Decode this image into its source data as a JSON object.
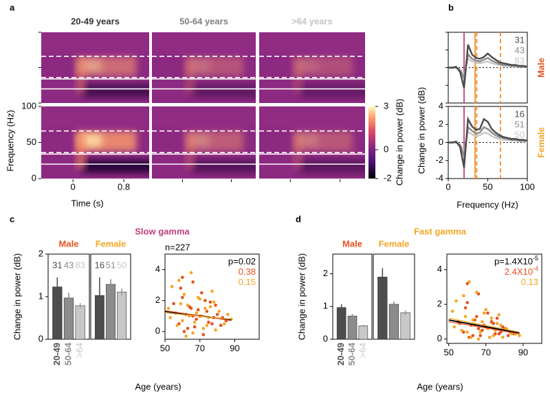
{
  "panel_labels": [
    "a",
    "b",
    "c",
    "d"
  ],
  "chart_data": [
    {
      "type": "heatmap",
      "columns": [
        "20-49 years",
        "50-64 years",
        ">64 years"
      ],
      "column_colors": [
        "#333333",
        "#808080",
        "#c4c4c4"
      ],
      "xlabel": "Time (s)",
      "ylabel": "Frequency (Hz)",
      "xlim": [
        -0.5,
        1.2
      ],
      "xticks": [
        0,
        0.8
      ],
      "ylim": [
        0,
        100
      ],
      "yticks": [
        0,
        50,
        100
      ],
      "bands": {
        "slow": [
          20,
          34
        ],
        "fast": [
          36,
          66
        ]
      },
      "colorbar": {
        "clim": [
          -2,
          3
        ],
        "cticks": [
          3,
          0,
          -2
        ],
        "label": "Change in power (dB)"
      }
    },
    {
      "type": "line",
      "xlabel": "Frequency (Hz)",
      "ylabel": "Change in power (dB)",
      "xlim": [
        0,
        100
      ],
      "xticks": [
        0,
        50,
        100
      ],
      "ylim": [
        -4,
        4
      ],
      "yticks": [
        4,
        2,
        0,
        -2,
        -4
      ],
      "bands": {
        "slow": [
          20,
          34
        ],
        "fast": [
          36,
          66
        ]
      },
      "band_colors": {
        "slow": "#c0407a",
        "fast": "#f08c30"
      },
      "x": [
        0,
        5,
        10,
        15,
        20,
        25,
        30,
        35,
        40,
        45,
        50,
        55,
        60,
        65,
        70,
        75,
        80,
        85,
        90,
        95,
        100
      ],
      "panels": [
        {
          "name": "Male",
          "color": "#e8501e",
          "series": [
            {
              "name": "31",
              "color": "#4d4d4d",
              "values": [
                0,
                0,
                0.1,
                -0.5,
                -2.3,
                2.6,
                1.5,
                1.1,
                1,
                1.2,
                1.6,
                1.2,
                0.9,
                0.6,
                0.5,
                0.4,
                0.3,
                0.3,
                0.2,
                0.2,
                0.1
              ]
            },
            {
              "name": "43",
              "color": "#8c8c8c",
              "values": [
                0,
                0,
                0,
                -0.3,
                -1.2,
                1.5,
                1,
                0.8,
                0.7,
                0.9,
                1.1,
                0.8,
                0.6,
                0.4,
                0.3,
                0.3,
                0.2,
                0.2,
                0.1,
                0.1,
                0.1
              ]
            },
            {
              "name": "83",
              "color": "#c8c8c8",
              "values": [
                0,
                0,
                0,
                -0.2,
                -0.8,
                1,
                0.7,
                0.6,
                0.5,
                0.6,
                0.7,
                0.5,
                0.4,
                0.3,
                0.2,
                0.2,
                0.1,
                0.1,
                0.1,
                0.1,
                0
              ]
            }
          ]
        },
        {
          "name": "Female",
          "color": "#f5a623",
          "series": [
            {
              "name": "16",
              "color": "#4d4d4d",
              "values": [
                0,
                0,
                0.1,
                -0.5,
                -2.8,
                2.6,
                1.8,
                1.4,
                1.5,
                2.6,
                2.3,
                1.5,
                1.1,
                0.8,
                0.6,
                0.5,
                0.4,
                0.4,
                0.3,
                0.3,
                0.2
              ]
            },
            {
              "name": "51",
              "color": "#8c8c8c",
              "values": [
                0,
                0,
                0,
                -0.3,
                -1.5,
                1.7,
                1.3,
                1,
                1.1,
                1.7,
                1.5,
                1.1,
                0.8,
                0.6,
                0.5,
                0.4,
                0.3,
                0.3,
                0.2,
                0.2,
                0.2
              ]
            },
            {
              "name": "50",
              "color": "#c8c8c8",
              "values": [
                0,
                0,
                0,
                -0.2,
                -1,
                1.2,
                0.9,
                0.7,
                0.8,
                1.1,
                1,
                0.7,
                0.5,
                0.4,
                0.3,
                0.3,
                0.2,
                0.2,
                0.2,
                0.1,
                0.1
              ]
            }
          ]
        }
      ]
    },
    {
      "type": "bar",
      "title": "Slow gamma",
      "title_color": "#c0407a",
      "ylabel": "Change in power (dB)",
      "ylim": [
        0,
        2
      ],
      "yticks": [
        0,
        1,
        2
      ],
      "categories": [
        "20-49",
        "50-64",
        ">64"
      ],
      "category_colors": [
        "#4d4d4d",
        "#8c8c8c",
        "#c8c8c8"
      ],
      "groups": [
        {
          "name": "Male",
          "color": "#e8501e",
          "counts": [
            31,
            43,
            83
          ],
          "values": [
            1.23,
            0.97,
            0.79
          ],
          "errors": [
            0.22,
            0.12,
            0.06
          ]
        },
        {
          "name": "Female",
          "color": "#f5a623",
          "counts": [
            16,
            51,
            50
          ],
          "values": [
            1.03,
            1.29,
            1.11
          ],
          "errors": [
            0.42,
            0.12,
            0.08
          ]
        }
      ]
    },
    {
      "type": "scatter",
      "xlabel": "Age (years)",
      "xlim": [
        50,
        104
      ],
      "xticks": [
        50,
        70,
        90
      ],
      "ylim": [
        -0.5,
        5
      ],
      "yticks": [
        0,
        2,
        4
      ],
      "note": "n=227",
      "stats": [
        {
          "text": "p=0.02",
          "color": "#000000"
        },
        {
          "text": "0.38",
          "color": "#e8501e"
        },
        {
          "text": "0.15",
          "color": "#f5a623"
        }
      ],
      "series": [
        {
          "color": "#e8501e",
          "x": [
            55,
            58,
            60,
            62,
            63,
            65,
            66,
            68,
            70,
            71,
            72,
            74,
            75,
            76,
            78,
            80,
            82,
            85,
            56,
            59,
            61,
            64,
            67,
            69,
            73,
            77,
            79,
            83,
            60,
            66
          ],
          "values": [
            1.8,
            0.5,
            2.2,
            1.1,
            0.2,
            1.5,
            3.2,
            0.8,
            1,
            2.5,
            -0.2,
            1.3,
            0.6,
            1.9,
            0.9,
            1.1,
            0.4,
            0.7,
            1.2,
            2.8,
            0,
            1.6,
            0.3,
            1.4,
            2,
            0.5,
            1.7,
            0.9,
            3.5,
            1
          ]
        },
        {
          "color": "#f5a623",
          "x": [
            52,
            54,
            57,
            59,
            61,
            62,
            64,
            65,
            67,
            68,
            70,
            72,
            73,
            75,
            77,
            79,
            81,
            84,
            88,
            53,
            58,
            63,
            66,
            69,
            71,
            74,
            76,
            86,
            60,
            78
          ],
          "values": [
            1.5,
            2.9,
            0.4,
            1.8,
            2.4,
            -0.3,
            1,
            3.8,
            0.6,
            1.2,
            2.1,
            0.2,
            1.5,
            0.9,
            2.6,
            0.1,
            1.3,
            0.5,
            0.8,
            0.9,
            3.3,
            1.7,
            -0.1,
            2.2,
            1,
            0.4,
            1.6,
            1.1,
            0.7,
            1.9
          ]
        }
      ],
      "fits": [
        {
          "color": "#000000",
          "x": [
            50,
            88
          ],
          "values": [
            1.3,
            0.75
          ]
        },
        {
          "color": "#e8501e",
          "x": [
            50,
            88
          ],
          "values": [
            1.35,
            0.7
          ]
        },
        {
          "color": "#f5a623",
          "x": [
            50,
            88
          ],
          "values": [
            1.2,
            0.8
          ]
        }
      ]
    },
    {
      "type": "bar",
      "title": "Fast gamma",
      "title_color": "#f5a623",
      "ylabel": "Change in power (dB)",
      "ylim": [
        0,
        2.6
      ],
      "yticks": [
        0,
        1,
        2
      ],
      "categories": [
        "20-49",
        "50-64",
        ">64"
      ],
      "category_colors": [
        "#4d4d4d",
        "#8c8c8c",
        "#c8c8c8"
      ],
      "groups": [
        {
          "name": "Male",
          "color": "#e8501e",
          "counts": [],
          "values": [
            0.97,
            0.71,
            0.41
          ],
          "errors": [
            0.1,
            0.06,
            0.03
          ]
        },
        {
          "name": "Female",
          "color": "#f5a623",
          "counts": [],
          "values": [
            1.9,
            1.07,
            0.81
          ],
          "errors": [
            0.27,
            0.08,
            0.07
          ]
        }
      ]
    },
    {
      "type": "scatter",
      "xlabel": "Age (years)",
      "xlim": [
        49,
        100
      ],
      "xticks": [
        50,
        70,
        90
      ],
      "ylim": [
        -0.25,
        4.9
      ],
      "yticks": [
        0,
        2,
        4
      ],
      "stats": [
        {
          "text": "p=1.4X10",
          "sup": "-5",
          "color": "#000000"
        },
        {
          "text": "2.4X10",
          "sup": "-4",
          "color": "#e8501e"
        },
        {
          "text": "0.13",
          "color": "#f5a623"
        }
      ],
      "series": [
        {
          "color": "#e8501e",
          "x": [
            55,
            58,
            60,
            62,
            63,
            65,
            66,
            68,
            70,
            71,
            72,
            74,
            75,
            76,
            78,
            80,
            82,
            85,
            56,
            59,
            61,
            64,
            67,
            69,
            73,
            77,
            79,
            83,
            60,
            66
          ],
          "values": [
            1,
            0.4,
            2.1,
            0.8,
            0.2,
            1.3,
            2.6,
            0.5,
            0.7,
            1.5,
            0.1,
            0.9,
            0.3,
            1.2,
            0.4,
            0.6,
            0.2,
            0.3,
            0.9,
            1.8,
            0.1,
            1.1,
            0.2,
            0.8,
            1,
            0.3,
            0.7,
            0.4,
            3.2,
            0.6
          ]
        },
        {
          "color": "#f5a623",
          "x": [
            52,
            54,
            57,
            59,
            61,
            62,
            64,
            65,
            67,
            68,
            70,
            72,
            73,
            75,
            77,
            79,
            81,
            84,
            88,
            53,
            58,
            63,
            66,
            69,
            71,
            74,
            76,
            86,
            60,
            78
          ],
          "values": [
            1.6,
            2.2,
            0.5,
            1.3,
            3.3,
            0.1,
            0.8,
            2.7,
            0.4,
            1,
            1.7,
            0.1,
            1.2,
            0.5,
            1.4,
            0.1,
            0.6,
            0.3,
            0.2,
            0.7,
            2.5,
            1.1,
            0,
            1.5,
            0.6,
            0.2,
            0.9,
            0.3,
            0.4,
            0.8
          ]
        }
      ],
      "fits": [
        {
          "color": "#000000",
          "x": [
            50,
            88
          ],
          "values": [
            1.1,
            0.35
          ]
        },
        {
          "color": "#e8501e",
          "x": [
            50,
            88
          ],
          "values": [
            1,
            0.3
          ]
        },
        {
          "color": "#f5a623",
          "x": [
            50,
            88
          ],
          "values": [
            1.2,
            0.4
          ]
        }
      ]
    }
  ]
}
